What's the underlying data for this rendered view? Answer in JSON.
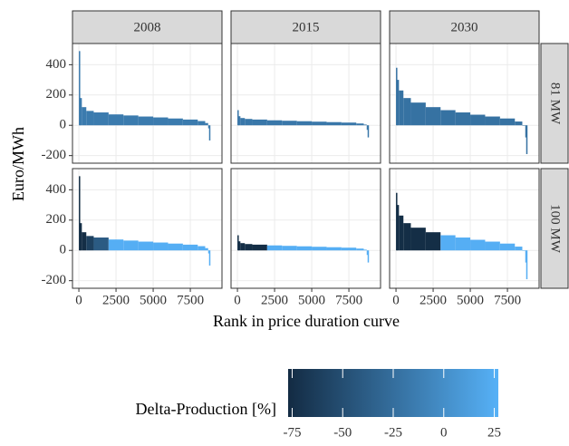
{
  "chart_data": {
    "type": "duration-facets",
    "xlabel": "Rank in price duration curve",
    "ylabel": "Euro/MWh",
    "columns": [
      "2008",
      "2015",
      "2030"
    ],
    "rows": [
      "81 MW",
      "100 MW"
    ],
    "xlim": [
      -430,
      9630
    ],
    "xticks": [
      0,
      2500,
      5000,
      7500
    ],
    "ylim": [
      -250,
      540
    ],
    "yticks": [
      -200,
      0,
      200,
      400
    ],
    "grid": true,
    "x": [
      0,
      50,
      200,
      500,
      1000,
      2000,
      3000,
      4000,
      5000,
      6000,
      7000,
      8000,
      8500,
      8700,
      8760
    ],
    "panels": [
      [
        {
          "y": [
            490,
            180,
            120,
            95,
            85,
            72,
            65,
            58,
            52,
            45,
            38,
            28,
            15,
            -20,
            -100
          ],
          "delta": [
            -15,
            -15,
            -15,
            -15,
            -15,
            -15,
            -15,
            -15,
            -15,
            -15,
            -15,
            -15,
            -15,
            -15,
            -15
          ]
        },
        {
          "y": [
            100,
            60,
            48,
            42,
            38,
            33,
            30,
            27,
            24,
            21,
            18,
            12,
            5,
            -30,
            -80
          ],
          "delta": [
            -18,
            -18,
            -18,
            -18,
            -18,
            -18,
            -18,
            -18,
            -18,
            -18,
            -18,
            -18,
            -18,
            -18,
            -18
          ]
        },
        {
          "y": [
            380,
            300,
            230,
            180,
            150,
            120,
            100,
            85,
            70,
            58,
            45,
            25,
            0,
            -80,
            -190
          ],
          "delta": [
            -22,
            -22,
            -22,
            -22,
            -22,
            -22,
            -22,
            -22,
            -22,
            -22,
            -22,
            -22,
            -22,
            -22,
            -22
          ]
        }
      ],
      [
        {
          "y": [
            490,
            180,
            120,
            95,
            85,
            72,
            65,
            58,
            52,
            45,
            38,
            28,
            15,
            -20,
            -100
          ],
          "delta": [
            -75,
            -75,
            -75,
            -60,
            -40,
            25,
            25,
            25,
            25,
            25,
            25,
            25,
            25,
            25,
            25
          ]
        },
        {
          "y": [
            100,
            60,
            48,
            42,
            38,
            33,
            30,
            27,
            24,
            21,
            18,
            12,
            5,
            -30,
            -80
          ],
          "delta": [
            -75,
            -75,
            -75,
            -75,
            -75,
            25,
            25,
            25,
            25,
            25,
            25,
            25,
            25,
            25,
            25
          ]
        },
        {
          "y": [
            380,
            300,
            230,
            180,
            150,
            120,
            100,
            85,
            70,
            58,
            45,
            25,
            0,
            -80,
            -190
          ],
          "delta": [
            -75,
            -75,
            -75,
            -75,
            -75,
            -75,
            25,
            25,
            25,
            25,
            25,
            25,
            25,
            25,
            25
          ]
        }
      ]
    ],
    "legend": {
      "title": "Delta-Production [%]",
      "lim": [
        -77,
        27
      ],
      "ticks": [
        -75,
        -50,
        -25,
        0,
        25
      ],
      "low_color": "#132B43",
      "high_color": "#56B1F7"
    }
  }
}
